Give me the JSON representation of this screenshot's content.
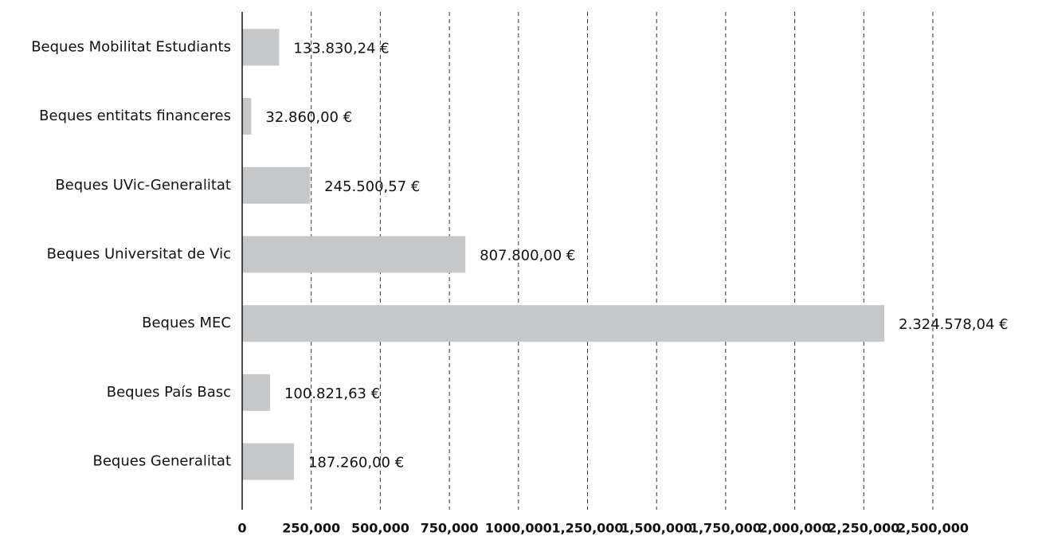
{
  "chart_data": {
    "type": "barh",
    "categories": [
      "Beques Mobilitat Estudiants",
      "Beques entitats financeres",
      "Beques UVic-Generalitat",
      "Beques Universitat de Vic",
      "Beques MEC",
      "Beques País Basc",
      "Beques Generalitat"
    ],
    "values": [
      133830.24,
      32860.0,
      245500.57,
      807800.0,
      2324578.04,
      100821.63,
      187260.0
    ],
    "value_labels": [
      "133.830,24 €",
      "32.860,00 €",
      "245.500,57 €",
      "807.800,00 €",
      "2.324.578,04 €",
      "100.821,63 €",
      "187.260,00 €"
    ],
    "color": "#c6c7c8",
    "xlim": [
      0,
      2500000
    ],
    "xticks": [
      0,
      {
        "value": 250000,
        "label": "250,000"
      },
      {
        "value": 500000,
        "label": "500,000"
      },
      {
        "value": 750000,
        "label": "750,000"
      },
      {
        "value": 1000000,
        "label": "1000,000"
      },
      {
        "value": 1250000,
        "label": "1,250,000"
      },
      {
        "value": 1500000,
        "label": "1,500,000"
      },
      {
        "value": 1750000,
        "label": "1,750,000"
      },
      {
        "value": 2000000,
        "label": "2,000,000"
      },
      {
        "value": 2250000,
        "label": "2,250,000"
      },
      {
        "value": 2500000,
        "label": "2,500,000"
      }
    ],
    "grid": true
  }
}
